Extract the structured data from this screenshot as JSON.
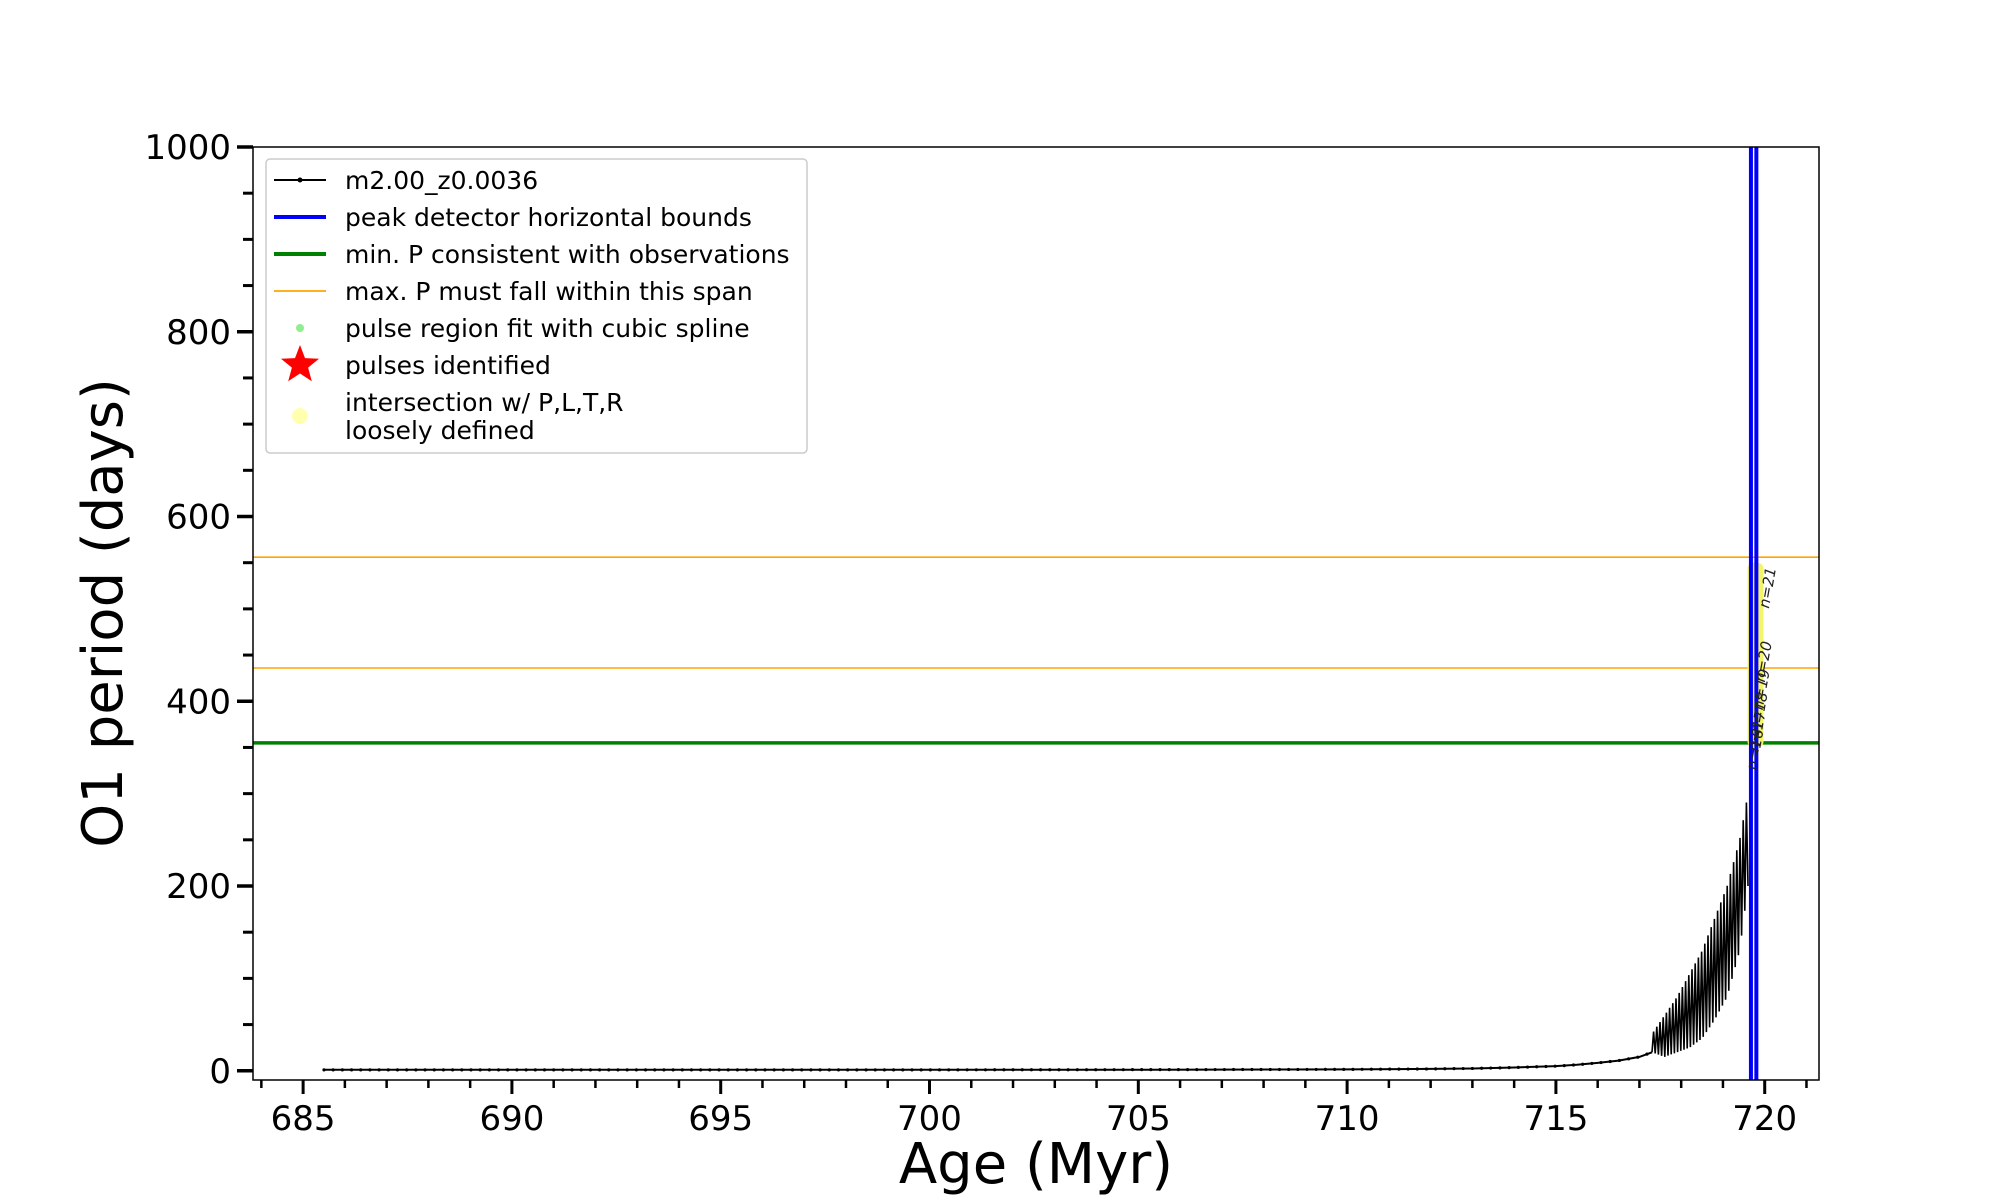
{
  "chart_data": {
    "type": "line",
    "title": "",
    "xlabel": "Age (Myr)",
    "ylabel": "O1 period (days)",
    "xlim": [
      683.8,
      721.3
    ],
    "ylim": [
      -10,
      1000
    ],
    "x_ticks": [
      685,
      690,
      695,
      700,
      705,
      710,
      715,
      720
    ],
    "y_ticks": [
      0,
      200,
      400,
      600,
      800,
      1000
    ],
    "legend_position": "upper-left",
    "legend": [
      {
        "label": "m2.00_z0.0036",
        "marker": "line-dot",
        "color": "#000000"
      },
      {
        "label": "peak detector horizontal bounds",
        "marker": "line",
        "color": "#0000ff"
      },
      {
        "label": "min. P consistent with observations",
        "marker": "line",
        "color": "#008000"
      },
      {
        "label": "max. P must fall within this span",
        "marker": "thin-line",
        "color": "#ffa500"
      },
      {
        "label": "pulse region fit with cubic spline",
        "marker": "dot",
        "color": "#90ee90"
      },
      {
        "label": "pulses identified",
        "marker": "star",
        "color": "#ff0000"
      },
      {
        "label": "intersection w/ P,L,T,R\nloosely defined",
        "marker": "dot",
        "color": "#ffffb0"
      }
    ],
    "series": [
      {
        "name": "m2.00_z0.0036",
        "color": "#000000",
        "baseline": {
          "x": [
            685.5,
            690,
            695,
            700,
            705,
            710,
            712,
            713,
            714,
            715,
            715.5,
            716,
            716.5,
            717,
            717.3
          ],
          "y": [
            1,
            1,
            1,
            1,
            1.2,
            1.5,
            2,
            2.5,
            3.5,
            5,
            6.5,
            8.5,
            11,
            15,
            20
          ]
        },
        "pulse_envelope": {
          "x": [
            717.3,
            717.6,
            717.9,
            718.2,
            718.5,
            718.8,
            719.1,
            719.4,
            719.6
          ],
          "lower": [
            20,
            15,
            20,
            25,
            35,
            55,
            80,
            130,
            200
          ],
          "upper": [
            40,
            60,
            80,
            105,
            130,
            165,
            200,
            250,
            300
          ]
        }
      },
      {
        "name": "peak detector horizontal bounds",
        "color": "#0000ff",
        "type": "vline",
        "x": [
          719.67,
          719.8
        ]
      },
      {
        "name": "min. P consistent with observations",
        "color": "#008000",
        "type": "hline",
        "y": 355
      },
      {
        "name": "max. P must fall within this span",
        "color": "#ffa500",
        "type": "hline",
        "y": [
          556,
          436
        ]
      }
    ],
    "pulse_labels": [
      {
        "text": "n=21",
        "x": 720.1,
        "y": 500
      },
      {
        "text": "n=20",
        "x": 720.0,
        "y": 420
      },
      {
        "text": "n=19",
        "x": 719.95,
        "y": 390
      },
      {
        "text": "n=18",
        "x": 719.9,
        "y": 365
      },
      {
        "text": "n=17",
        "x": 719.85,
        "y": 345
      },
      {
        "text": "n=16",
        "x": 719.8,
        "y": 325
      }
    ],
    "highlight_span": {
      "x": 719.78,
      "y_from": 350,
      "y_to": 550,
      "color": "#f4f46a"
    }
  }
}
